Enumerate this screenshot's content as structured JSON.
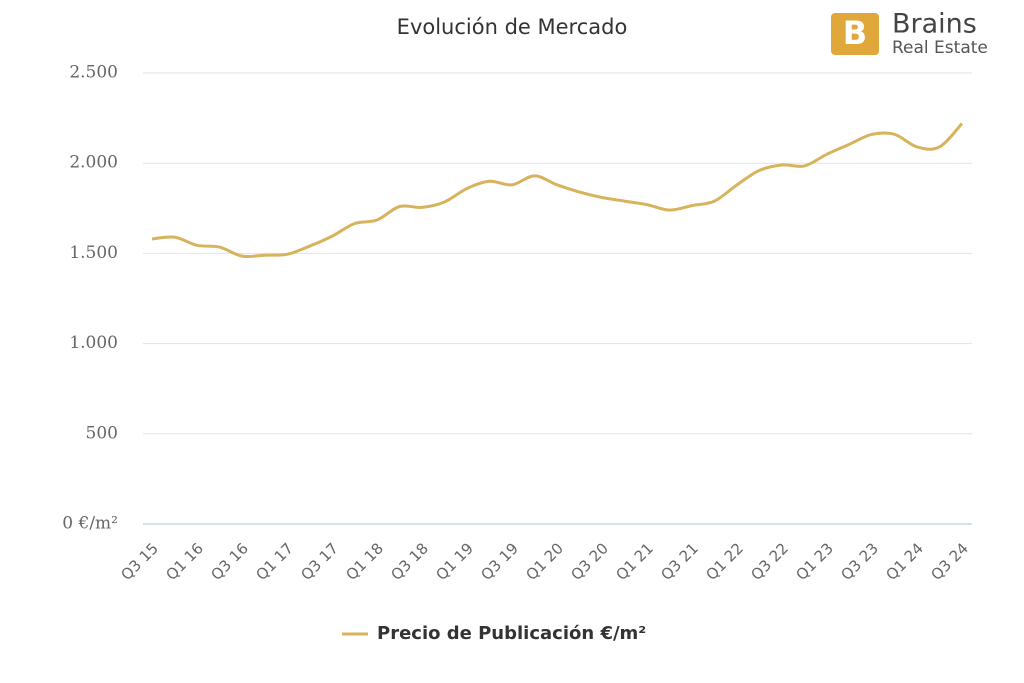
{
  "logo": {
    "name": "Brains",
    "tagline": "Real Estate"
  },
  "chart_data": {
    "type": "line",
    "title": "Evolución de Mercado",
    "categories": [
      "Q3 15",
      null,
      "Q1 16",
      null,
      "Q3 16",
      null,
      "Q1 17",
      null,
      "Q3 17",
      null,
      "Q1 18",
      null,
      "Q3 18",
      null,
      "Q1 19",
      null,
      "Q3 19",
      null,
      "Q1 20",
      null,
      "Q3 20",
      null,
      "Q1 21",
      null,
      "Q3 21",
      null,
      "Q1 22",
      null,
      "Q3 22",
      null,
      "Q1 23",
      null,
      "Q3 23",
      null,
      "Q1 24",
      null,
      "Q3 24"
    ],
    "series": [
      {
        "name": "Precio de Publicación €/m²",
        "color": "#d6b35c",
        "values": [
          1580,
          1590,
          1545,
          1535,
          1485,
          1490,
          1495,
          1540,
          1595,
          1665,
          1685,
          1760,
          1755,
          1785,
          1860,
          1900,
          1880,
          1930,
          1880,
          1840,
          1810,
          1790,
          1770,
          1740,
          1765,
          1790,
          1880,
          1960,
          1990,
          1985,
          2050,
          2105,
          2160,
          2160,
          2090,
          2090,
          2220
        ]
      }
    ],
    "ylim": [
      0,
      2500
    ],
    "yticks": [
      {
        "value": 0,
        "label": "0 €/m²"
      },
      500,
      {
        "value": 1000,
        "label": "1.000"
      },
      {
        "value": 1500,
        "label": "1.500"
      },
      {
        "value": 2000,
        "label": "2.000"
      },
      {
        "value": 2500,
        "label": "2.500"
      }
    ],
    "grid": true,
    "legend": "bottom"
  }
}
